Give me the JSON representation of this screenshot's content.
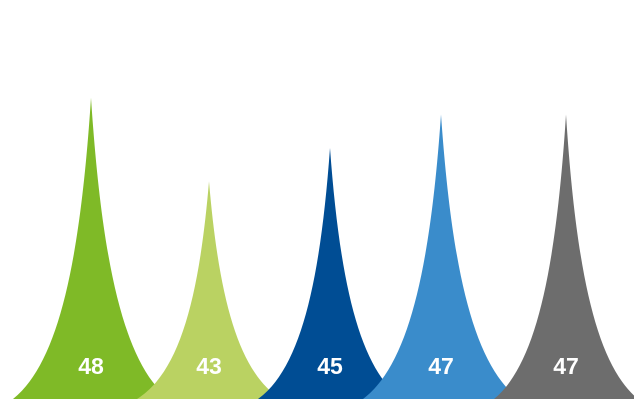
{
  "chart_data": {
    "type": "bar",
    "shape": "spike",
    "categories": [],
    "values": [
      48,
      43,
      45,
      47,
      47
    ],
    "labels": [
      "48",
      "43",
      "45",
      "47",
      "47"
    ],
    "colors": [
      "#7fba27",
      "#bad262",
      "#004d94",
      "#3a8ccb",
      "#6d6d6d"
    ],
    "ylim": [
      30,
      49
    ],
    "grid": false,
    "legend": "none"
  }
}
